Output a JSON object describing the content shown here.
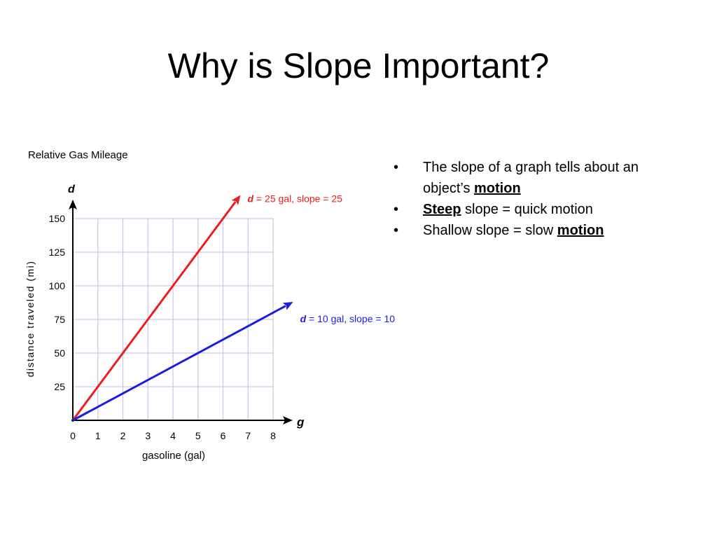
{
  "slide": {
    "title": "Why is Slope Important?"
  },
  "bullets": {
    "marker": "•",
    "items": [
      {
        "parts": [
          {
            "text": "The slope of a graph tells about an object’s ",
            "emphasis": false
          },
          {
            "text": "motion",
            "emphasis": true
          }
        ]
      },
      {
        "parts": [
          {
            "text": "Steep",
            "emphasis": true
          },
          {
            "text": " slope = quick motion",
            "emphasis": false
          }
        ]
      },
      {
        "parts": [
          {
            "text": "Shallow slope = slow ",
            "emphasis": false
          },
          {
            "text": "motion",
            "emphasis": true
          }
        ]
      }
    ]
  },
  "chart_data": {
    "type": "line",
    "title": "Relative Gas Mileage",
    "xlabel": "gasoline (gal)",
    "ylabel": "distance traveled (mi)",
    "x_axis_letter": "g",
    "y_axis_letter": "d",
    "xlim": [
      0,
      8
    ],
    "ylim": [
      0,
      150
    ],
    "x_ticks": [
      0,
      1,
      2,
      3,
      4,
      5,
      6,
      7,
      8
    ],
    "y_ticks": [
      25,
      50,
      75,
      100,
      125,
      150
    ],
    "grid": true,
    "series": [
      {
        "name": "d = 25 gal, slope = 25",
        "label_var": "d",
        "label_rest": " = 25 gal, slope = 25",
        "slope": 25,
        "x": [
          0,
          6.7
        ],
        "y": [
          0,
          167.5
        ],
        "color": "#ee1c1c"
      },
      {
        "name": "d = 10 gal, slope = 10",
        "label_var": "d",
        "label_rest": " = 10 gal, slope = 10",
        "slope": 10,
        "x": [
          0,
          8.8
        ],
        "y": [
          0,
          88
        ],
        "color": "#1c1ce0"
      }
    ]
  }
}
